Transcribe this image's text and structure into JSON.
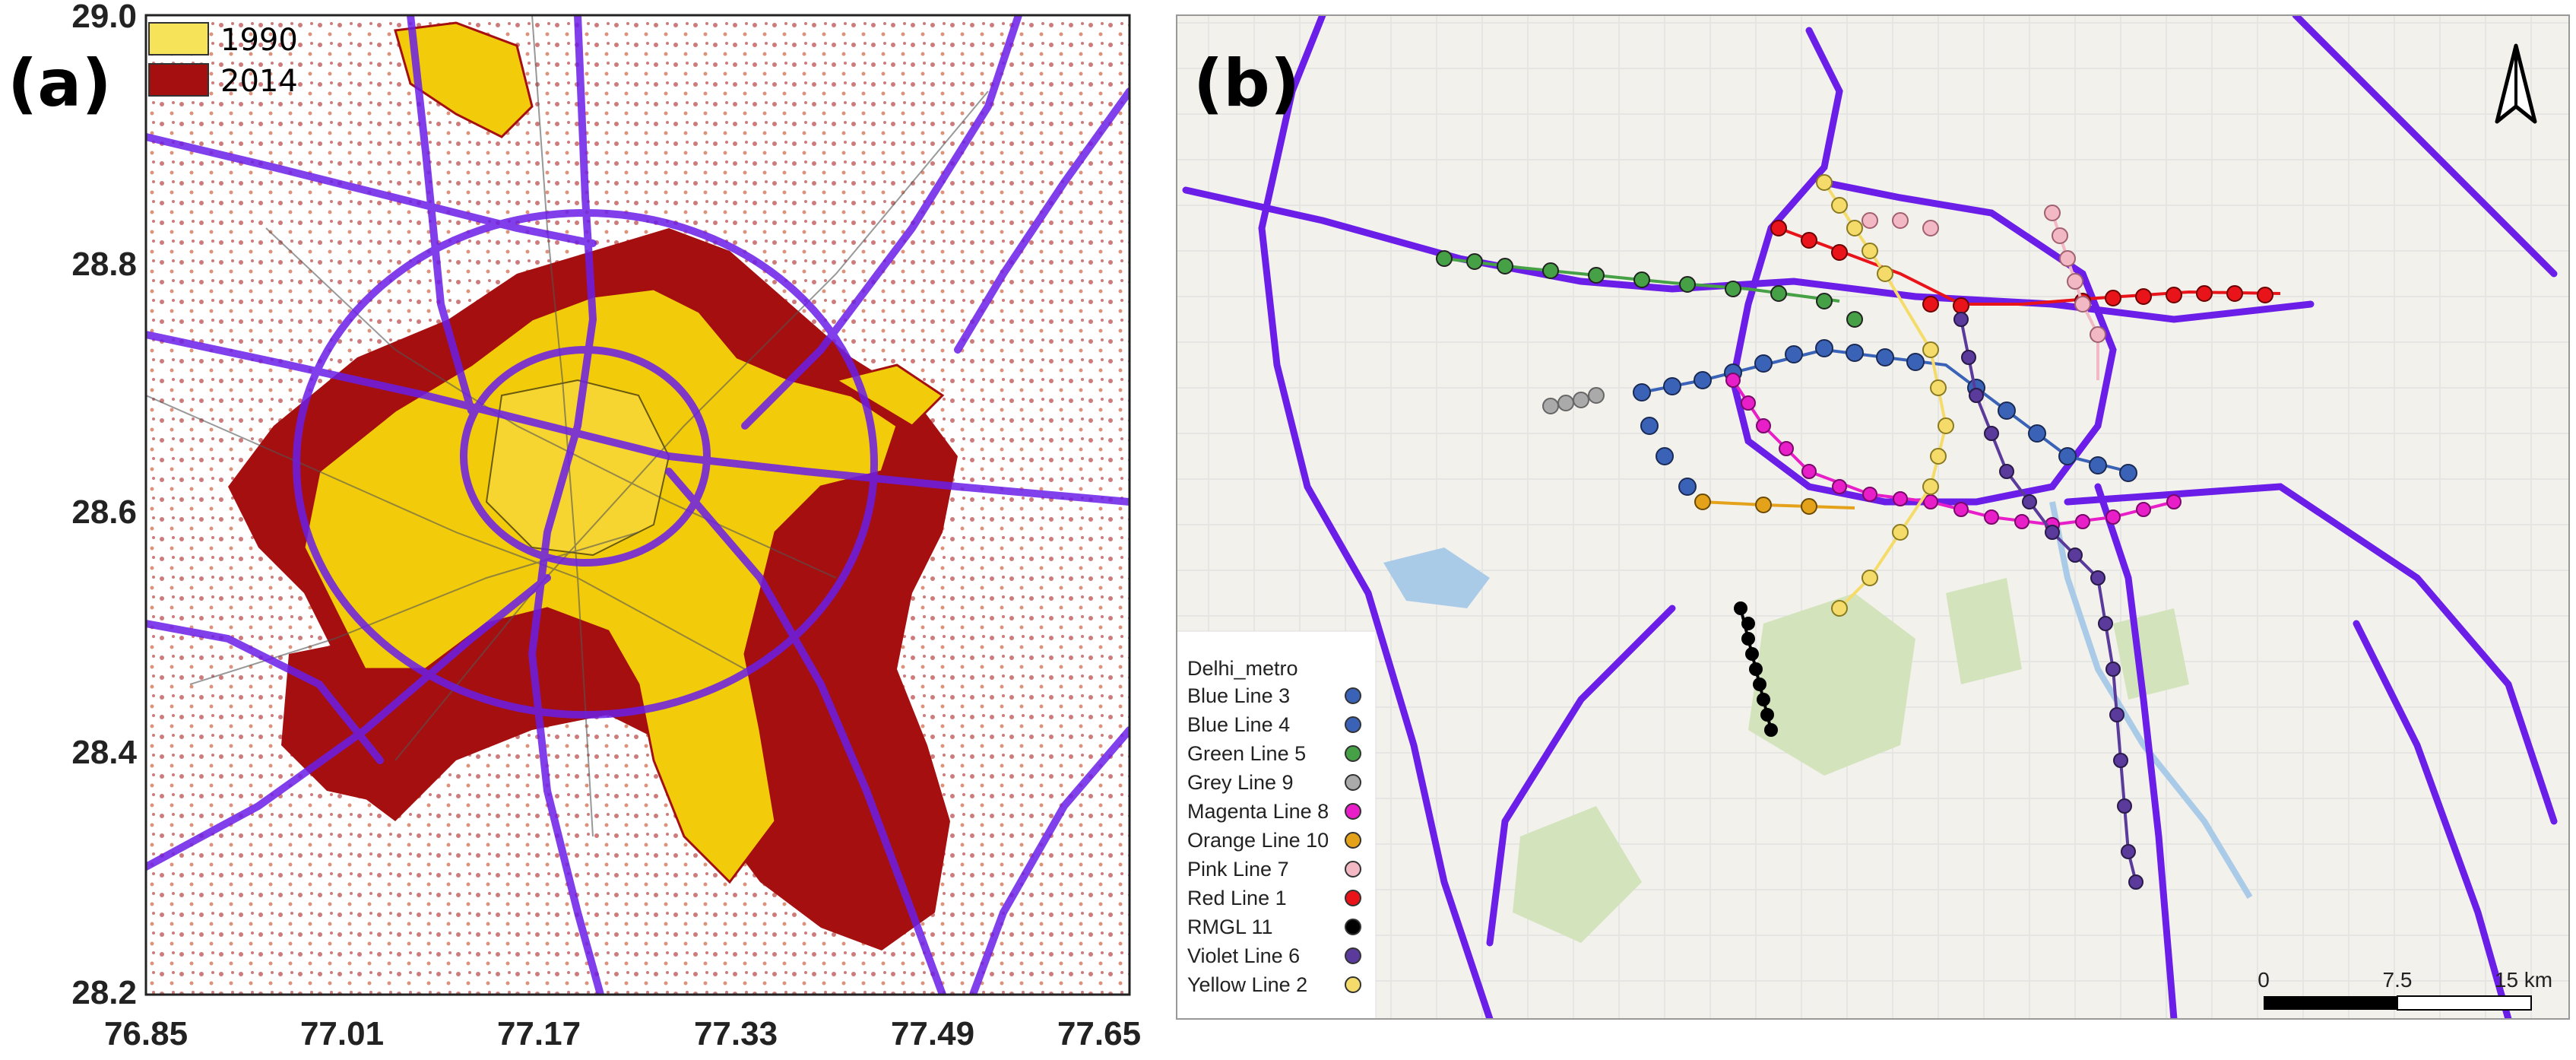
{
  "panel_a": {
    "label": "(a)",
    "legend": [
      {
        "label": "1990",
        "color": "#f2cc0a"
      },
      {
        "label": "2014",
        "color": "#a50f0f"
      }
    ],
    "y_ticks": [
      "29.0",
      "28.8",
      "28.6",
      "28.4",
      "28.2"
    ],
    "x_ticks": [
      "76.85",
      "77.01",
      "77.17",
      "77.33",
      "77.49",
      "77.65"
    ]
  },
  "panel_b": {
    "label": "(b)",
    "legend_title": "Delhi_metro",
    "lines": [
      {
        "name": "Blue Line 3",
        "color": "#3a63b8"
      },
      {
        "name": "Blue Line 4",
        "color": "#3a63b8"
      },
      {
        "name": "Green Line 5",
        "color": "#46a046"
      },
      {
        "name": "Grey Line 9",
        "color": "#aaaaaa"
      },
      {
        "name": "Magenta Line 8",
        "color": "#e81ec8"
      },
      {
        "name": "Orange Line 10",
        "color": "#e3a21a"
      },
      {
        "name": "Pink Line 7",
        "color": "#f2b8c4"
      },
      {
        "name": "Red Line 1",
        "color": "#e8141a"
      },
      {
        "name": "RMGL 11",
        "color": "#000000"
      },
      {
        "name": "Violet Line 6",
        "color": "#5a3a9a"
      },
      {
        "name": "Yellow Line 2",
        "color": "#f5dc6a"
      }
    ],
    "scale": {
      "ticks": [
        "0",
        "7.5",
        "15 km"
      ]
    },
    "north_arrow": "north-arrow-icon",
    "road_color": "#6a1ee8"
  }
}
